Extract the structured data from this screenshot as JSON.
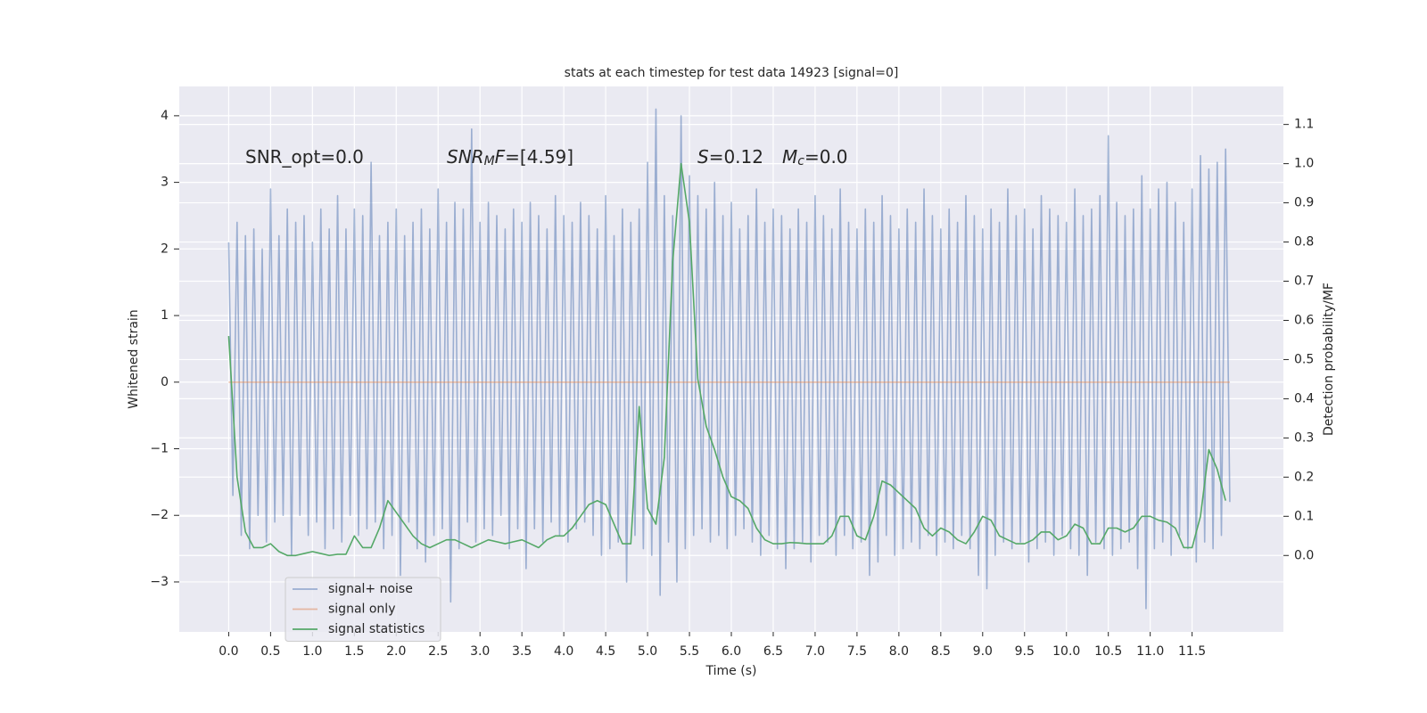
{
  "chart_data": {
    "type": "line",
    "title": "stats at each timestep for test data 14923 [signal=0]",
    "xlabel": "Time (s)",
    "ylabel": "Whitened strain",
    "y2label": "Detection probability/MF",
    "xlim": [
      -0.59,
      12.59
    ],
    "ylim": [
      -3.75,
      4.44
    ],
    "y2lim": [
      -0.195,
      1.197
    ],
    "xticks": [
      {
        "value": 0,
        "label": "0.0"
      },
      0.5,
      {
        "value": 1,
        "label": "1.0"
      },
      1.5,
      {
        "value": 2,
        "label": "2.0"
      },
      2.5,
      {
        "value": 3,
        "label": "3.0"
      },
      3.5,
      {
        "value": 4,
        "label": "4.0"
      },
      4.5,
      {
        "value": 5,
        "label": "5.0"
      },
      5.5,
      {
        "value": 6,
        "label": "6.0"
      },
      6.5,
      {
        "value": 7,
        "label": "7.0"
      },
      7.5,
      {
        "value": 8,
        "label": "8.0"
      },
      8.5,
      {
        "value": 9,
        "label": "9.0"
      },
      9.5,
      {
        "value": 10,
        "label": "10.0"
      },
      10.5,
      {
        "value": 11,
        "label": "11.0"
      },
      11.5
    ],
    "yticks": [
      {
        "value": -3,
        "label": "−3"
      },
      {
        "value": -2,
        "label": "−2"
      },
      {
        "value": -1,
        "label": "−1"
      },
      0,
      1,
      2,
      3,
      4
    ],
    "y2ticks": [
      {
        "value": 0,
        "label": "0.0"
      },
      0.1,
      0.2,
      0.3,
      0.4,
      0.5,
      0.6,
      0.7,
      0.8,
      0.9,
      {
        "value": 1,
        "label": "1.0"
      },
      1.1
    ],
    "grid": true,
    "background": "#eaeaf2",
    "legend": "lower left",
    "annotations": [
      {
        "segments": [
          {
            "text": "SNR_opt=0.0"
          }
        ]
      },
      {
        "segments": [
          {
            "text": "SNR",
            "style": "italic"
          },
          {
            "text": "M",
            "style": "italic-sub"
          },
          {
            "text": "F",
            "style": "italic"
          },
          {
            "text": "=[4.59]"
          }
        ]
      },
      {
        "segments": [
          {
            "text": "S",
            "style": "italic"
          },
          {
            "text": "=0.12"
          }
        ]
      },
      {
        "segments": [
          {
            "text": "M",
            "style": "italic"
          },
          {
            "text": "c",
            "style": "italic-sub"
          },
          {
            "text": "=0.0"
          }
        ]
      }
    ],
    "series": [
      {
        "name": "signal+ noise",
        "color": "#4c72b0",
        "opacity": 0.5,
        "x": [
          0,
          0.05,
          0.1,
          0.15,
          0.2,
          0.25,
          0.3,
          0.35,
          0.4,
          0.45,
          0.5,
          0.55,
          0.6,
          0.65,
          0.7,
          0.75,
          0.8,
          0.85,
          0.9,
          0.95,
          1,
          1.05,
          1.1,
          1.15,
          1.2,
          1.25,
          1.3,
          1.35,
          1.4,
          1.45,
          1.5,
          1.55,
          1.6,
          1.65,
          1.7,
          1.75,
          1.8,
          1.85,
          1.9,
          1.95,
          2,
          2.05,
          2.1,
          2.15,
          2.2,
          2.25,
          2.3,
          2.35,
          2.4,
          2.45,
          2.5,
          2.55,
          2.6,
          2.65,
          2.7,
          2.75,
          2.8,
          2.85,
          2.9,
          2.95,
          3,
          3.05,
          3.1,
          3.15,
          3.2,
          3.25,
          3.3,
          3.35,
          3.4,
          3.45,
          3.5,
          3.55,
          3.6,
          3.65,
          3.7,
          3.75,
          3.8,
          3.85,
          3.9,
          3.95,
          4,
          4.05,
          4.1,
          4.15,
          4.2,
          4.25,
          4.3,
          4.35,
          4.4,
          4.45,
          4.5,
          4.55,
          4.6,
          4.65,
          4.7,
          4.75,
          4.8,
          4.85,
          4.9,
          4.95,
          5,
          5.05,
          5.1,
          5.15,
          5.2,
          5.25,
          5.3,
          5.35,
          5.4,
          5.45,
          5.5,
          5.55,
          5.6,
          5.65,
          5.7,
          5.75,
          5.8,
          5.85,
          5.9,
          5.95,
          6,
          6.05,
          6.1,
          6.15,
          6.2,
          6.25,
          6.3,
          6.35,
          6.4,
          6.45,
          6.5,
          6.55,
          6.6,
          6.65,
          6.7,
          6.75,
          6.8,
          6.85,
          6.9,
          6.95,
          7,
          7.05,
          7.1,
          7.15,
          7.2,
          7.25,
          7.3,
          7.35,
          7.4,
          7.45,
          7.5,
          7.55,
          7.6,
          7.65,
          7.7,
          7.75,
          7.8,
          7.85,
          7.9,
          7.95,
          8,
          8.05,
          8.1,
          8.15,
          8.2,
          8.25,
          8.3,
          8.35,
          8.4,
          8.45,
          8.5,
          8.55,
          8.6,
          8.65,
          8.7,
          8.75,
          8.8,
          8.85,
          8.9,
          8.95,
          9,
          9.05,
          9.1,
          9.15,
          9.2,
          9.25,
          9.3,
          9.35,
          9.4,
          9.45,
          9.5,
          9.55,
          9.6,
          9.65,
          9.7,
          9.75,
          9.8,
          9.85,
          9.9,
          9.95,
          10,
          10.05,
          10.1,
          10.15,
          10.2,
          10.25,
          10.3,
          10.35,
          10.4,
          10.45,
          10.5,
          10.55,
          10.6,
          10.65,
          10.7,
          10.75,
          10.8,
          10.85,
          10.9,
          10.95,
          11,
          11.05,
          11.1,
          11.15,
          11.2,
          11.25,
          11.3,
          11.35,
          11.4,
          11.45,
          11.5,
          11.55,
          11.6,
          11.65,
          11.7,
          11.75,
          11.8,
          11.85,
          11.9,
          11.95
        ],
        "values": [
          2.1,
          -1.7,
          2.4,
          -2.3,
          2.2,
          -2.5,
          2.3,
          -2.0,
          2.0,
          -2.4,
          2.9,
          -2.1,
          2.2,
          -2.0,
          2.6,
          -2.6,
          2.4,
          -2.0,
          2.5,
          -2.3,
          2.1,
          -2.1,
          2.6,
          -2.5,
          2.3,
          -2.2,
          2.8,
          -2.4,
          2.3,
          -2.0,
          2.6,
          -2.3,
          2.5,
          -2.2,
          3.3,
          -2.1,
          2.2,
          -2.5,
          2.4,
          -2.3,
          2.6,
          -2.9,
          2.2,
          -2.1,
          2.4,
          -2.5,
          2.6,
          -2.7,
          2.3,
          -2.3,
          2.9,
          -2.2,
          2.4,
          -3.3,
          2.7,
          -2.5,
          2.6,
          -2.1,
          3.8,
          -2.4,
          2.4,
          -2.2,
          2.7,
          -2.3,
          2.5,
          -2.0,
          2.3,
          -2.5,
          2.6,
          -2.2,
          2.4,
          -2.8,
          2.7,
          -2.2,
          2.5,
          -2.4,
          2.3,
          -2.1,
          2.8,
          -2.3,
          2.5,
          -2.4,
          2.4,
          -2.2,
          2.7,
          -2.1,
          2.5,
          -2.3,
          2.3,
          -2.6,
          2.8,
          -2.5,
          2.2,
          -2.4,
          2.6,
          -3.0,
          2.4,
          -2.3,
          2.6,
          -2.5,
          3.3,
          -2.6,
          4.1,
          -3.2,
          2.8,
          -2.4,
          2.5,
          -3.0,
          4.0,
          -2.5,
          3.1,
          -2.3,
          2.8,
          -2.2,
          2.6,
          -2.4,
          3.0,
          -2.3,
          2.5,
          -2.5,
          2.7,
          -2.3,
          2.3,
          -2.2,
          2.5,
          -2.4,
          2.9,
          -2.6,
          2.4,
          -2.3,
          2.6,
          -2.5,
          2.5,
          -2.8,
          2.3,
          -2.5,
          2.6,
          -2.4,
          2.4,
          -2.7,
          2.8,
          -2.3,
          2.5,
          -2.4,
          2.3,
          -2.6,
          2.9,
          -2.3,
          2.4,
          -2.5,
          2.3,
          -2.4,
          2.6,
          -2.9,
          2.4,
          -2.7,
          2.8,
          -2.3,
          2.5,
          -2.6,
          2.3,
          -2.5,
          2.6,
          -2.4,
          2.4,
          -2.5,
          2.9,
          -2.3,
          2.5,
          -2.6,
          2.3,
          -2.4,
          2.6,
          -2.5,
          2.4,
          -2.3,
          2.8,
          -2.5,
          2.5,
          -2.9,
          2.3,
          -3.1,
          2.6,
          -2.6,
          2.4,
          -2.4,
          2.9,
          -2.5,
          2.5,
          -2.4,
          2.6,
          -2.7,
          2.3,
          -2.5,
          2.8,
          -2.4,
          2.6,
          -2.6,
          2.5,
          -2.3,
          2.4,
          -2.5,
          2.9,
          -2.6,
          2.5,
          -2.9,
          2.6,
          -2.4,
          2.8,
          -2.5,
          3.7,
          -2.6,
          2.7,
          -2.5,
          2.5,
          -2.4,
          2.6,
          -2.8,
          3.1,
          -3.4,
          2.6,
          -2.5,
          2.9,
          -2.4,
          3.0,
          -2.6,
          2.7,
          -2.3,
          2.4,
          -2.5,
          2.9,
          -2.7,
          3.4,
          -2.4,
          3.2,
          -2.5,
          3.3,
          -2.3,
          3.5,
          -1.8
        ]
      },
      {
        "name": "signal only",
        "color": "#dd8452",
        "opacity": 0.5,
        "x": [
          0,
          11.95
        ],
        "values": [
          0,
          0
        ]
      },
      {
        "name": "signal statistics",
        "color": "#55a868",
        "opacity": 1,
        "axis": "y2",
        "x": [
          0,
          0.1,
          0.2,
          0.3,
          0.4,
          0.5,
          0.6,
          0.7,
          0.8,
          0.9,
          1,
          1.1,
          1.2,
          1.3,
          1.4,
          1.5,
          1.6,
          1.7,
          1.8,
          1.9,
          2,
          2.1,
          2.2,
          2.3,
          2.4,
          2.5,
          2.6,
          2.7,
          2.8,
          2.9,
          3,
          3.1,
          3.2,
          3.3,
          3.4,
          3.5,
          3.6,
          3.7,
          3.8,
          3.9,
          4,
          4.1,
          4.2,
          4.3,
          4.4,
          4.5,
          4.6,
          4.7,
          4.8,
          4.9,
          5,
          5.1,
          5.2,
          5.3,
          5.4,
          5.5,
          5.6,
          5.7,
          5.8,
          5.9,
          6,
          6.1,
          6.2,
          6.3,
          6.4,
          6.5,
          6.6,
          6.7,
          6.8,
          6.9,
          7,
          7.1,
          7.2,
          7.3,
          7.4,
          7.5,
          7.6,
          7.7,
          7.8,
          7.9,
          8,
          8.1,
          8.2,
          8.3,
          8.4,
          8.5,
          8.6,
          8.7,
          8.8,
          8.9,
          9,
          9.1,
          9.2,
          9.3,
          9.4,
          9.5,
          9.6,
          9.7,
          9.8,
          9.9,
          10,
          10.1,
          10.2,
          10.3,
          10.4,
          10.5,
          10.6,
          10.7,
          10.8,
          10.9,
          11,
          11.1,
          11.2,
          11.3,
          11.4,
          11.5,
          11.6,
          11.7,
          11.8,
          11.9
        ],
        "values": [
          0.56,
          0.2,
          0.06,
          0.02,
          0.02,
          0.03,
          0.01,
          0.0,
          0.0,
          0.005,
          0.01,
          0.005,
          0.0,
          0.003,
          0.003,
          0.05,
          0.02,
          0.02,
          0.07,
          0.14,
          0.11,
          0.08,
          0.05,
          0.03,
          0.02,
          0.03,
          0.04,
          0.04,
          0.03,
          0.02,
          0.03,
          0.04,
          0.035,
          0.03,
          0.035,
          0.04,
          0.03,
          0.02,
          0.04,
          0.05,
          0.05,
          0.07,
          0.1,
          0.13,
          0.14,
          0.13,
          0.08,
          0.03,
          0.03,
          0.38,
          0.12,
          0.08,
          0.25,
          0.75,
          1.0,
          0.85,
          0.45,
          0.33,
          0.27,
          0.2,
          0.15,
          0.14,
          0.12,
          0.07,
          0.04,
          0.03,
          0.03,
          0.033,
          0.032,
          0.03,
          0.03,
          0.03,
          0.05,
          0.1,
          0.1,
          0.05,
          0.04,
          0.1,
          0.19,
          0.18,
          0.16,
          0.14,
          0.12,
          0.07,
          0.05,
          0.07,
          0.06,
          0.04,
          0.03,
          0.06,
          0.1,
          0.09,
          0.05,
          0.04,
          0.03,
          0.03,
          0.04,
          0.06,
          0.06,
          0.04,
          0.05,
          0.08,
          0.07,
          0.03,
          0.03,
          0.07,
          0.07,
          0.06,
          0.07,
          0.1,
          0.1,
          0.09,
          0.085,
          0.07,
          0.02,
          0.02,
          0.1,
          0.27,
          0.22,
          0.14
        ]
      }
    ]
  }
}
